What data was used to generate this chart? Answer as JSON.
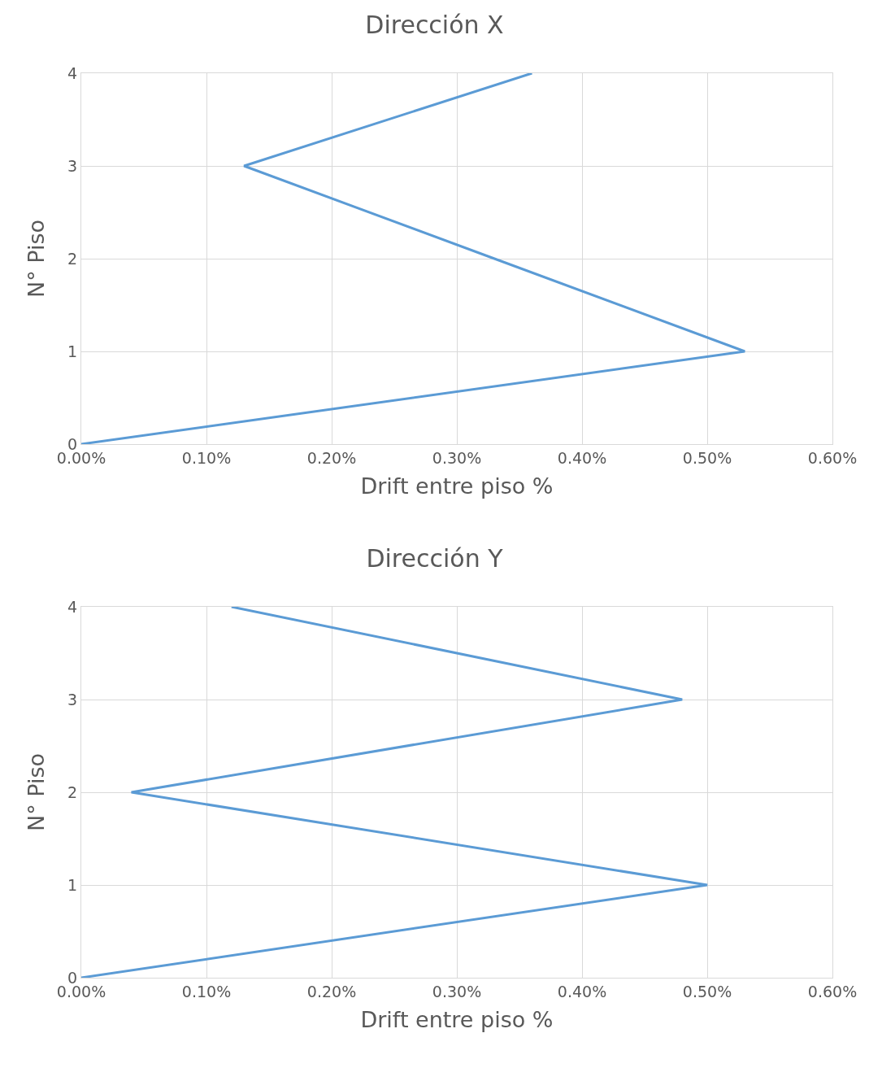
{
  "chart_data": [
    {
      "type": "line",
      "title": "Dirección X",
      "xlabel": "Drift entre piso %",
      "ylabel": "N° Piso",
      "x": [
        0,
        0.53,
        0.33,
        0.13,
        0.36
      ],
      "values": [
        0,
        1,
        2,
        3,
        4
      ],
      "color": "#5b9bd5",
      "xlim": [
        0,
        0.6
      ],
      "xticks": [
        {
          "value": 0,
          "label": "0.00%"
        },
        {
          "value": 0.1,
          "label": "0.10%"
        },
        {
          "value": 0.2,
          "label": "0.20%"
        },
        {
          "value": 0.3,
          "label": "0.30%"
        },
        {
          "value": 0.4,
          "label": "0.40%"
        },
        {
          "value": 0.5,
          "label": "0.50%"
        },
        {
          "value": 0.6,
          "label": "0.60%"
        }
      ],
      "ylim": [
        0,
        4
      ],
      "yticks": [
        0,
        1,
        2,
        3,
        4
      ],
      "grid": true
    },
    {
      "type": "line",
      "title": "Dirección Y",
      "xlabel": "Drift entre piso %",
      "ylabel": "N° Piso",
      "x": [
        0,
        0.5,
        0.04,
        0.48,
        0.12
      ],
      "values": [
        0,
        1,
        2,
        3,
        4
      ],
      "color": "#5b9bd5",
      "xlim": [
        0,
        0.6
      ],
      "xticks": [
        {
          "value": 0,
          "label": "0.00%"
        },
        {
          "value": 0.1,
          "label": "0.10%"
        },
        {
          "value": 0.2,
          "label": "0.20%"
        },
        {
          "value": 0.3,
          "label": "0.30%"
        },
        {
          "value": 0.4,
          "label": "0.40%"
        },
        {
          "value": 0.5,
          "label": "0.50%"
        },
        {
          "value": 0.6,
          "label": "0.60%"
        }
      ],
      "ylim": [
        0,
        4
      ],
      "yticks": [
        0,
        1,
        2,
        3,
        4
      ],
      "grid": true
    }
  ]
}
